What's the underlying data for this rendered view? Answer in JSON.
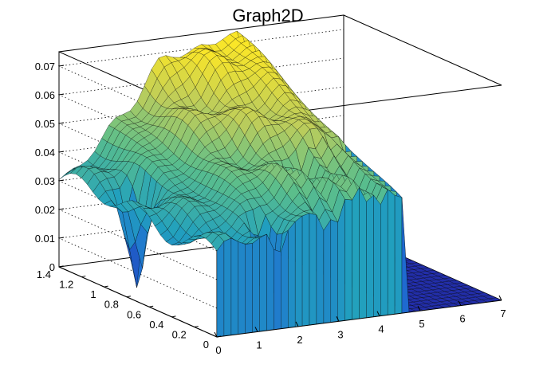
{
  "chart_data": {
    "type": "surface",
    "title": "Graph2D",
    "xlabel": "",
    "ylabel": "",
    "zlabel": "",
    "x_range": [
      0,
      7
    ],
    "y_range": [
      0,
      1.4
    ],
    "z_range": [
      0,
      0.075
    ],
    "x_ticks": [
      0,
      1,
      2,
      3,
      4,
      5,
      6,
      7
    ],
    "x_tick_labels": [
      "0",
      "1",
      "2",
      "3",
      "4",
      "5",
      "6",
      "7"
    ],
    "y_ticks": [
      0,
      0.2,
      0.4,
      0.6,
      0.8,
      1.0,
      1.2,
      1.4
    ],
    "y_tick_labels": [
      "0",
      "0.2",
      "0.4",
      "0.6",
      "0.8",
      "1",
      "1.2",
      "1.4"
    ],
    "z_ticks": [
      0,
      0.01,
      0.02,
      0.03,
      0.04,
      0.05,
      0.06,
      0.07
    ],
    "z_tick_labels": [
      "0",
      "0.01",
      "0.02",
      "0.03",
      "0.04",
      "0.05",
      "0.06",
      "0.07"
    ],
    "grid": true,
    "palette": "viridis-like (blue to green to yellow)",
    "surface_shape": {
      "x": [
        0,
        0.5,
        1,
        1.5,
        2,
        2.5,
        3,
        3.5,
        4,
        4.5,
        5,
        5.5,
        6,
        6.5,
        7
      ],
      "y": [
        0,
        0.1,
        0.2,
        0.3,
        0.4,
        0.5,
        0.6,
        0.7,
        0.8,
        0.9,
        1.0,
        1.1,
        1.2,
        1.3,
        1.4
      ],
      "z_at_y0_by_x": [
        0.03,
        0.029,
        0.032,
        0.035,
        0.038,
        0.04,
        0.041,
        0.042,
        0.043,
        0.044,
        0,
        0,
        0,
        0,
        0
      ],
      "z_at_y1.4_by_x": [
        0.031,
        0.036,
        0.043,
        0.05,
        0.058,
        0.064,
        0.068,
        0.072,
        0.074,
        0.073,
        0,
        0,
        0,
        0,
        0
      ],
      "zero_region": "x greater than about 4.6",
      "deep_dips": [
        {
          "x": 0.5,
          "y": 0.9,
          "z": 0.0
        },
        {
          "x": 1.5,
          "y": 0.1,
          "z": 0.0
        }
      ]
    }
  }
}
